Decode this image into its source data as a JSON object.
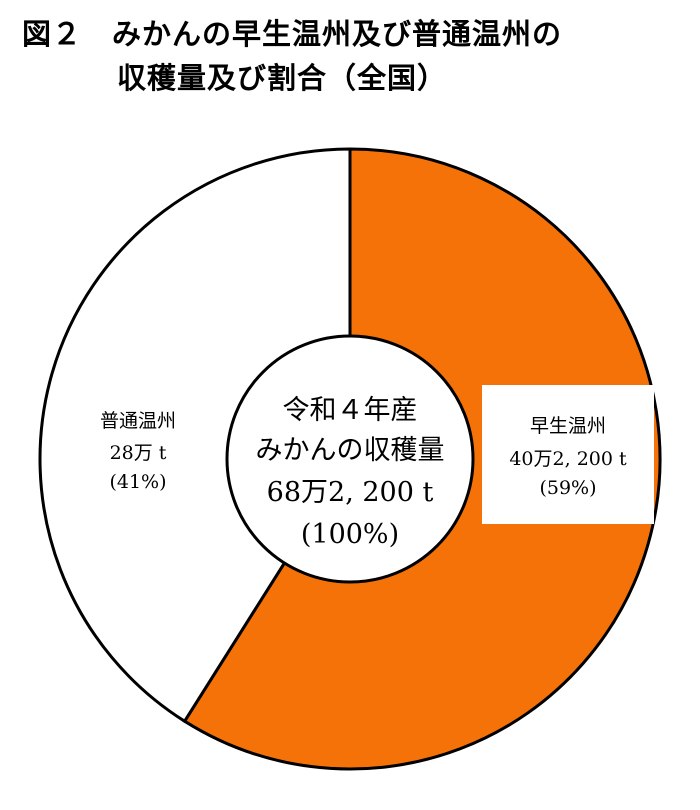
{
  "title": {
    "line1": "図２　みかんの早生温州及び普通温州の",
    "line2": "収穫量及び割合（全国）"
  },
  "colors": {
    "early": "#F57209",
    "regular": "#FFFFFF",
    "outline": "#000000"
  },
  "chart_data": {
    "type": "pie",
    "title": "図２　みかんの早生温州及び普通温州の収穫量及び割合（全国）",
    "center": {
      "line1": "令和４年産",
      "line2": "みかんの収穫量",
      "line3": "68万2, 200 t",
      "line4": "(100%)"
    },
    "slices": [
      {
        "name": "早生温州",
        "value_text": "40万2, 200 t",
        "percent_text": "(59%)",
        "value": 402200,
        "percent": 59,
        "color": "#F57209"
      },
      {
        "name": "普通温州",
        "value_text": "28万 t",
        "percent_text": "(41%)",
        "value": 280000,
        "percent": 41,
        "color": "#FFFFFF"
      }
    ],
    "total": 682200,
    "legend": "none"
  }
}
